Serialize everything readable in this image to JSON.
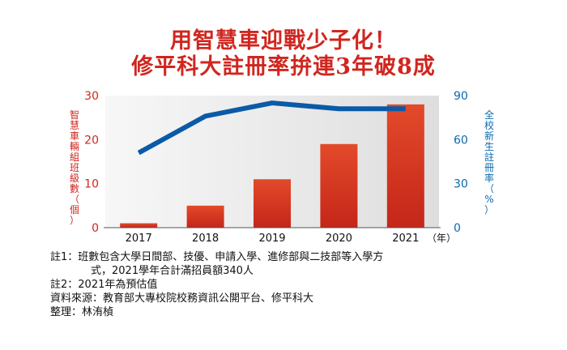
{
  "title": {
    "line1": "用智慧車迎戰少子化！",
    "line2": "修平科大註冊率拚連3年破8成"
  },
  "colors": {
    "title": "#d0261f",
    "bar": "#d3351f",
    "line": "#0a5aa7",
    "left_axis": "#d0261f",
    "right_axis": "#0a6bb0",
    "plot_bg": "#ebebeb"
  },
  "chart_data": {
    "type": "bar",
    "categories": [
      "2017",
      "2018",
      "2019",
      "2020",
      "2021"
    ],
    "x_unit": "（年）",
    "series": [
      {
        "type": "bar",
        "axis": "left",
        "values": [
          1,
          5,
          11,
          19,
          28
        ]
      },
      {
        "type": "line",
        "axis": "right",
        "values": [
          51,
          76,
          85,
          81,
          81
        ]
      }
    ],
    "left_axis": {
      "label": "智慧車輛組班級數（個）",
      "ylim": [
        0,
        30
      ],
      "ticks": [
        "0",
        "10",
        "20",
        "30"
      ]
    },
    "right_axis": {
      "label": "全校新生註冊率（%）",
      "ylim": [
        0,
        90
      ],
      "ticks": [
        "0",
        "30",
        "60",
        "90"
      ]
    },
    "grid": false
  },
  "notes": {
    "note1_line1": "註1：班數包含大學日間部、技優、申請入學、進修部與二技部等入學方",
    "note1_line2": "式，2021學年合計滿招員額340人",
    "note2": "註2：2021年為預估值",
    "source": "資料來源：教育部大專校院校務資訊公開平台、修平科大",
    "editor": "整理：林洧楨"
  }
}
